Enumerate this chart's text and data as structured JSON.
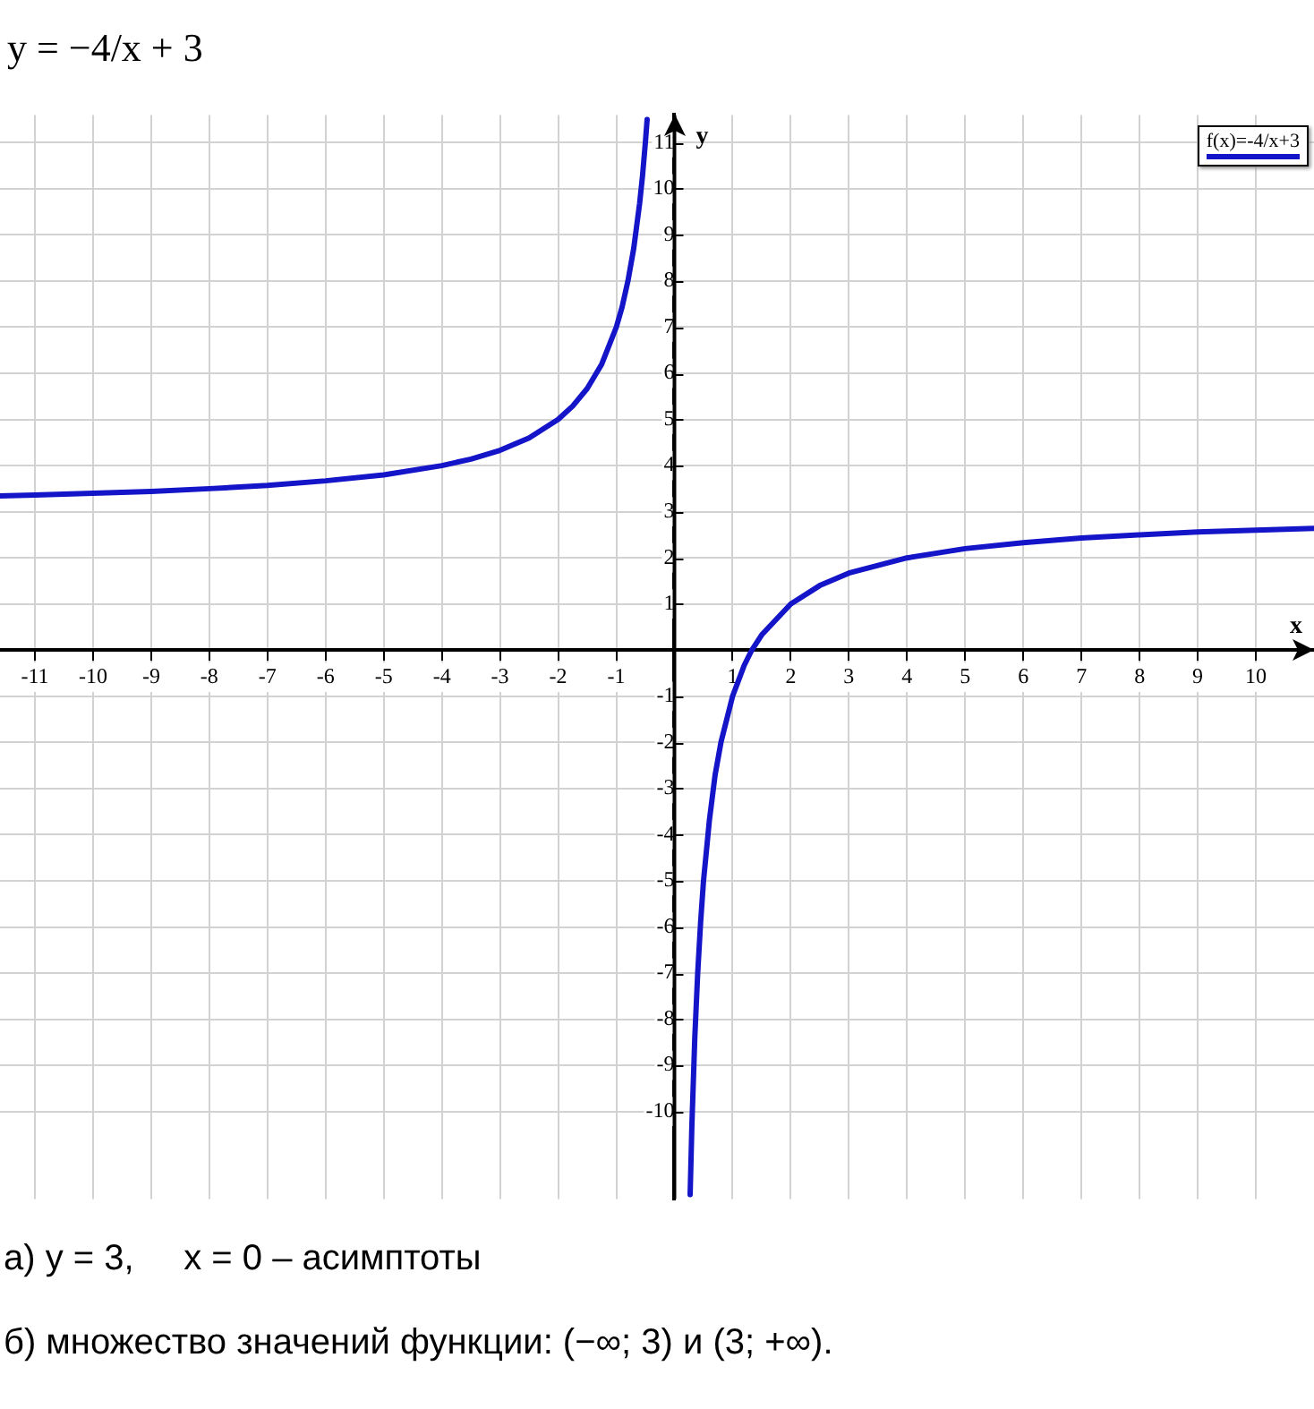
{
  "chart_data": {
    "type": "line",
    "title": "y = −4/x + 3",
    "xlabel": "x",
    "ylabel": "y",
    "x": [
      -11.6,
      -11,
      -10,
      -9,
      -8,
      -7,
      -6,
      -5,
      -4,
      -3.5,
      -3,
      -2.5,
      -2,
      -1.75,
      -1.5,
      -1.25,
      -1,
      -0.9,
      -0.8,
      -0.7,
      -0.6,
      -0.55,
      -0.5,
      -0.47,
      0,
      0.27,
      0.3,
      0.35,
      0.4,
      0.45,
      0.5,
      0.6,
      0.7,
      0.8,
      1,
      1.2,
      1.33,
      1.5,
      2,
      2.5,
      3,
      4,
      5,
      6,
      7,
      8,
      9,
      10,
      11
    ],
    "series": [
      {
        "name": "f(x)=-4/x+3",
        "color": "#1414c8",
        "values": [
          3.34,
          3.36,
          3.4,
          3.44,
          3.5,
          3.57,
          3.67,
          3.8,
          4,
          4.14,
          4.33,
          4.6,
          5,
          5.29,
          5.67,
          6.2,
          7,
          7.44,
          8,
          8.71,
          9.67,
          10.27,
          11,
          11.5,
          null,
          -11.8,
          -10.3,
          -8.4,
          -7,
          -5.9,
          -5,
          -3.7,
          -2.7,
          -2,
          -1,
          -0.33,
          0,
          0.33,
          1,
          1.4,
          1.67,
          2,
          2.2,
          2.33,
          2.43,
          2.5,
          2.56,
          2.6,
          2.64
        ]
      }
    ],
    "xlim": [
      -11.6,
      11
    ],
    "ylim": [
      -11.9,
      11.6
    ],
    "xticks": [
      -11,
      -10,
      -9,
      -8,
      -7,
      -6,
      -5,
      -4,
      -3,
      -2,
      -1,
      1,
      2,
      3,
      4,
      5,
      6,
      7,
      8,
      9,
      10
    ],
    "yticks": [
      -10,
      -9,
      -8,
      -7,
      -6,
      -5,
      -4,
      -3,
      -2,
      -1,
      1,
      2,
      3,
      4,
      5,
      6,
      7,
      8,
      9,
      10,
      11
    ],
    "grid": true,
    "legend": "top right",
    "marker": "none",
    "line_style": "solid",
    "annotations": [
      "а) y = 3,     x = 0 – асимптоты",
      "б) множество значений функции: (−∞; 3) и (3; +∞)."
    ]
  }
}
